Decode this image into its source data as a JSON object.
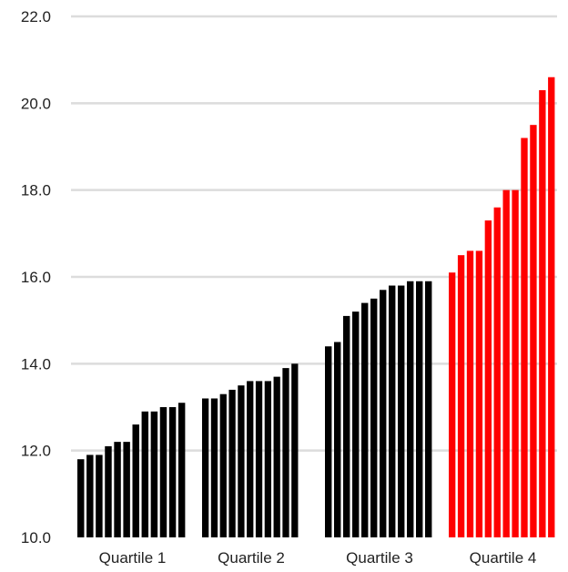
{
  "chart_data": {
    "type": "bar",
    "title": "",
    "xlabel": "",
    "ylabel": "",
    "ylim": [
      10.0,
      22.0
    ],
    "yticks": [
      "10.0",
      "12.0",
      "14.0",
      "16.0",
      "18.0",
      "20.0",
      "22.0"
    ],
    "grid": true,
    "categories": [
      "Quartile 1",
      "Quartile 2",
      "Quartile 3",
      "Quartile 4"
    ],
    "groups": [
      {
        "label": "Quartile 1",
        "color": "#000000",
        "values": [
          11.8,
          11.9,
          11.9,
          12.1,
          12.2,
          12.2,
          12.6,
          12.9,
          12.9,
          13.0,
          13.0,
          13.1
        ]
      },
      {
        "label": "Quartile 2",
        "color": "#000000",
        "values": [
          13.2,
          13.2,
          13.3,
          13.4,
          13.5,
          13.6,
          13.6,
          13.6,
          13.7,
          13.9,
          14.0
        ]
      },
      {
        "label": "Quartile 3",
        "color": "#000000",
        "values": [
          14.4,
          14.5,
          15.1,
          15.2,
          15.4,
          15.5,
          15.7,
          15.8,
          15.8,
          15.9,
          15.9,
          15.9
        ]
      },
      {
        "label": "Quartile 4",
        "color": "#ff0000",
        "values": [
          16.1,
          16.5,
          16.6,
          16.6,
          17.3,
          17.6,
          18.0,
          18.0,
          19.2,
          19.5,
          20.3,
          20.6
        ]
      }
    ]
  }
}
